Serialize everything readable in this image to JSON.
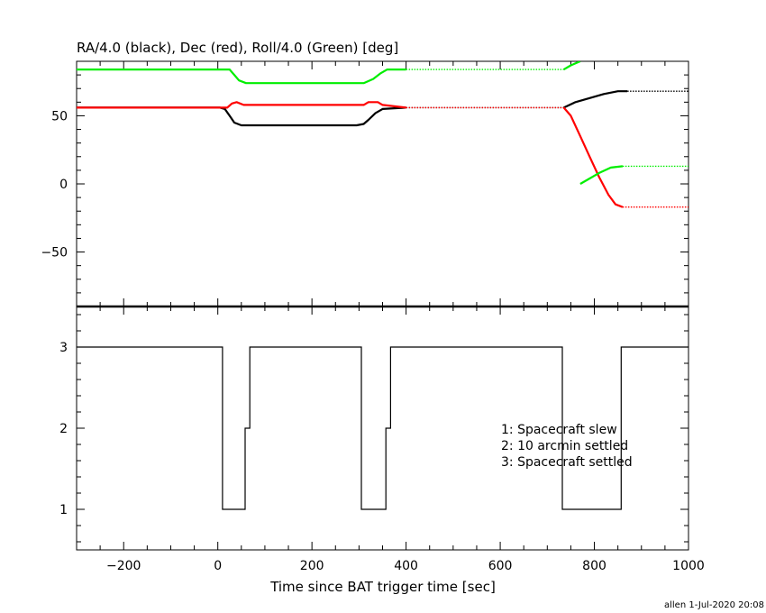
{
  "chart_data": [
    {
      "type": "line",
      "title": "RA/4.0 (black), Dec (red), Roll/4.0 (Green) [deg]",
      "xlim": [
        -300,
        1000
      ],
      "ylim": [
        -90,
        90
      ],
      "yticks": [
        -50,
        0,
        50
      ],
      "grid": false,
      "series": [
        {
          "name": "RA/4.0 (black)",
          "color": "#000000",
          "solid": [
            [
              -300,
              56
            ],
            [
              5,
              56
            ],
            [
              15,
              55
            ],
            [
              25,
              50
            ],
            [
              35,
              45
            ],
            [
              50,
              43
            ],
            [
              295,
              43
            ],
            [
              310,
              44
            ],
            [
              320,
              47
            ],
            [
              335,
              52
            ],
            [
              350,
              55
            ],
            [
              400,
              56
            ]
          ],
          "dotted": [
            [
              400,
              56
            ],
            [
              735,
              56
            ]
          ],
          "solid2": [
            [
              735,
              56
            ],
            [
              760,
              60
            ],
            [
              790,
              63
            ],
            [
              820,
              66
            ],
            [
              850,
              68
            ],
            [
              870,
              68
            ]
          ],
          "dotted2": [
            [
              870,
              68
            ],
            [
              1000,
              68
            ]
          ]
        },
        {
          "name": "Dec (red)",
          "color": "#ff0000",
          "solid": [
            [
              -300,
              56
            ],
            [
              20,
              56
            ],
            [
              30,
              59
            ],
            [
              40,
              60
            ],
            [
              55,
              58
            ],
            [
              310,
              58
            ],
            [
              320,
              60
            ],
            [
              340,
              60
            ],
            [
              350,
              58
            ],
            [
              400,
              56
            ]
          ],
          "dotted": [
            [
              400,
              56
            ],
            [
              735,
              56
            ]
          ],
          "solid2": [
            [
              735,
              56
            ],
            [
              750,
              50
            ],
            [
              770,
              35
            ],
            [
              790,
              20
            ],
            [
              810,
              5
            ],
            [
              830,
              -8
            ],
            [
              845,
              -15
            ],
            [
              860,
              -17
            ]
          ],
          "dotted2": [
            [
              860,
              -17
            ],
            [
              1000,
              -17
            ]
          ]
        },
        {
          "name": "Roll/4.0 (Green)",
          "color": "#00ee00",
          "solid": [
            [
              -300,
              84
            ],
            [
              25,
              84
            ],
            [
              35,
              80
            ],
            [
              45,
              76
            ],
            [
              60,
              74
            ],
            [
              310,
              74
            ],
            [
              330,
              77
            ],
            [
              345,
              81
            ],
            [
              360,
              84
            ],
            [
              400,
              84
            ]
          ],
          "dotted": [
            [
              400,
              84
            ],
            [
              735,
              84
            ]
          ],
          "solid2": [
            [
              735,
              84
            ],
            [
              750,
              87
            ],
            [
              770,
              90
            ]
          ],
          "solid3": [
            [
              770,
              0
            ],
            [
              790,
              4
            ],
            [
              810,
              8
            ],
            [
              835,
              12
            ],
            [
              860,
              13
            ]
          ],
          "dotted3": [
            [
              860,
              13
            ],
            [
              1000,
              13
            ]
          ]
        }
      ]
    },
    {
      "type": "line",
      "xlabel": "Time since BAT trigger time [sec]",
      "xlim": [
        -300,
        1000
      ],
      "ylim": [
        0.5,
        3.5
      ],
      "xticks": [
        -200,
        0,
        200,
        400,
        600,
        800,
        1000
      ],
      "yticks": [
        1,
        2,
        3
      ],
      "grid": false,
      "legend_position": "right",
      "legend": [
        "1: Spacecraft slew",
        "2: 10 arcmin settled",
        "3: Spacecraft settled"
      ],
      "series": [
        {
          "color": "#000000",
          "points": [
            [
              -300,
              3
            ],
            [
              10,
              3
            ],
            [
              10,
              1
            ],
            [
              58,
              1
            ],
            [
              58,
              2
            ],
            [
              68,
              2
            ],
            [
              68,
              3
            ],
            [
              305,
              3
            ],
            [
              305,
              1
            ],
            [
              357,
              1
            ],
            [
              357,
              2
            ],
            [
              367,
              2
            ],
            [
              367,
              3
            ],
            [
              732,
              3
            ],
            [
              732,
              1
            ],
            [
              857,
              1
            ],
            [
              857,
              3
            ],
            [
              1000,
              3
            ]
          ]
        }
      ]
    }
  ],
  "footer": "allen   1-Jul-2020 20:08"
}
